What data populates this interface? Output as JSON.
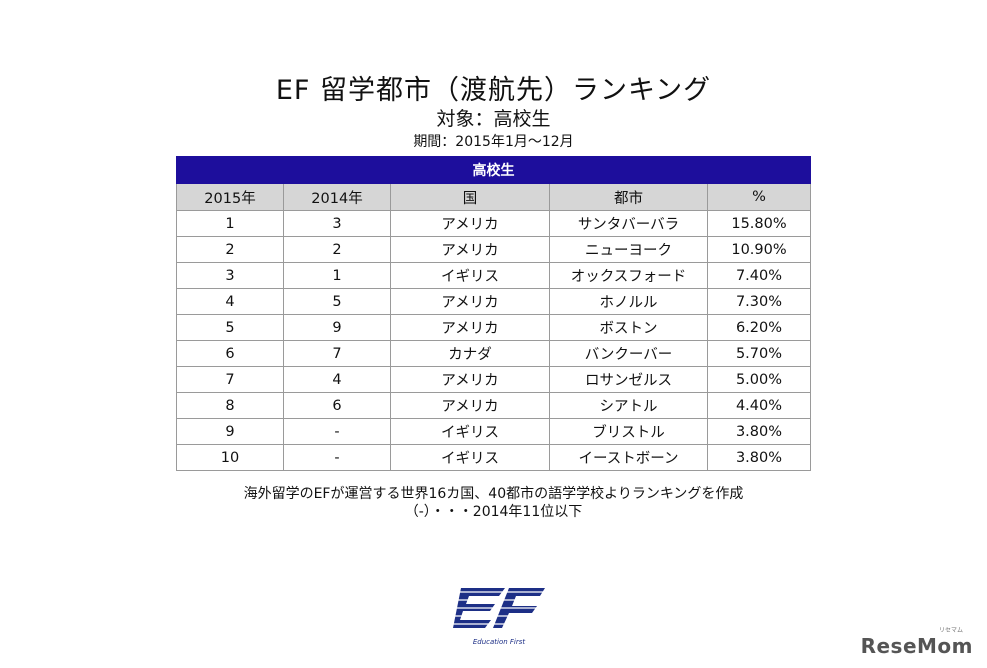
{
  "title": "EF 留学都市（渡航先）ランキング",
  "subtitle": "対象：高校生",
  "period": "期間：2015年1月～12月",
  "table": {
    "group_header": "高校生",
    "columns": [
      "2015年",
      "2014年",
      "国",
      "都市",
      "%"
    ],
    "rows": [
      [
        "1",
        "3",
        "アメリカ",
        "サンタバーバラ",
        "15.80%"
      ],
      [
        "2",
        "2",
        "アメリカ",
        "ニューヨーク",
        "10.90%"
      ],
      [
        "3",
        "1",
        "イギリス",
        "オックスフォード",
        "7.40%"
      ],
      [
        "4",
        "5",
        "アメリカ",
        "ホノルル",
        "7.30%"
      ],
      [
        "5",
        "9",
        "アメリカ",
        "ボストン",
        "6.20%"
      ],
      [
        "6",
        "7",
        "カナダ",
        "バンクーバー",
        "5.70%"
      ],
      [
        "7",
        "4",
        "アメリカ",
        "ロサンゼルス",
        "5.00%"
      ],
      [
        "8",
        "6",
        "アメリカ",
        "シアトル",
        "4.40%"
      ],
      [
        "9",
        "-",
        "イギリス",
        "ブリストル",
        "3.80%"
      ],
      [
        "10",
        "-",
        "イギリス",
        "イーストボーン",
        "3.80%"
      ]
    ]
  },
  "notes": [
    "海外留学のEFが運営する世界16カ国、40都市の語学学校よりランキングを作成",
    "（-）・・・2014年11位以下"
  ],
  "logo": {
    "icon": "ef-logo-icon",
    "text": "Education First",
    "color": "#1d2f86"
  },
  "watermark": {
    "text": "ReseMom",
    "small": "リセマム"
  },
  "colors": {
    "header_bg": "#1d0e9c",
    "column_header_bg": "#d6d6d6"
  }
}
